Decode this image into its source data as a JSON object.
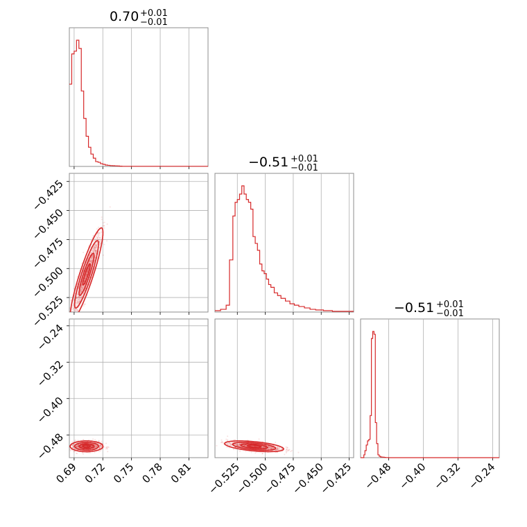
{
  "chart_data": [
    {
      "type": "histogram",
      "panel": "p0-0",
      "title": {
        "median": "0.70",
        "plus": "+0.01",
        "minus": "−0.01"
      },
      "xlim": [
        0.685,
        0.83
      ],
      "bins": [
        0.685,
        0.6875,
        0.69,
        0.6925,
        0.695,
        0.6975,
        0.7,
        0.7025,
        0.705,
        0.7075,
        0.71,
        0.7125,
        0.715,
        0.7175,
        0.72,
        0.7225,
        0.725,
        0.7275,
        0.73,
        0.7325,
        0.735,
        0.7375,
        0.74,
        0.83
      ],
      "heights": [
        0.6,
        0.82,
        0.84,
        0.92,
        0.86,
        0.55,
        0.35,
        0.22,
        0.14,
        0.09,
        0.06,
        0.035,
        0.03,
        0.02,
        0.015,
        0.01,
        0.008,
        0.006,
        0.005,
        0.004,
        0.003,
        0.002,
        0.001
      ],
      "color": "#d62728"
    },
    {
      "type": "scatter-contour",
      "panel": "p1-0",
      "xlim": [
        0.685,
        0.83
      ],
      "ylim": [
        -0.5375,
        -0.418
      ],
      "yticks": [
        "−0.425",
        "−0.450",
        "−0.475",
        "−0.500",
        "−0.525"
      ],
      "ytick_values": [
        -0.425,
        -0.45,
        -0.475,
        -0.5,
        -0.525
      ],
      "points_center": [
        0.703,
        -0.505
      ],
      "correlation": 0.9,
      "color": "#d62728"
    },
    {
      "type": "histogram",
      "panel": "p1-1",
      "title": {
        "median": "−0.51",
        "plus": "+0.01",
        "minus": "−0.01"
      },
      "xlim": [
        -0.545,
        -0.421
      ],
      "bins": [
        -0.545,
        -0.54,
        -0.535,
        -0.532,
        -0.529,
        -0.527,
        -0.525,
        -0.523,
        -0.521,
        -0.519,
        -0.517,
        -0.515,
        -0.513,
        -0.511,
        -0.509,
        -0.507,
        -0.505,
        -0.503,
        -0.501,
        -0.499,
        -0.497,
        -0.495,
        -0.492,
        -0.489,
        -0.486,
        -0.482,
        -0.478,
        -0.474,
        -0.47,
        -0.465,
        -0.46,
        -0.455,
        -0.448,
        -0.44,
        -0.421
      ],
      "heights": [
        0.01,
        0.02,
        0.05,
        0.38,
        0.7,
        0.8,
        0.82,
        0.86,
        0.92,
        0.86,
        0.82,
        0.8,
        0.75,
        0.55,
        0.5,
        0.45,
        0.35,
        0.3,
        0.28,
        0.24,
        0.2,
        0.18,
        0.14,
        0.12,
        0.1,
        0.08,
        0.06,
        0.05,
        0.04,
        0.03,
        0.02,
        0.015,
        0.01,
        0.005
      ],
      "color": "#d62728"
    },
    {
      "type": "scatter-contour",
      "panel": "p2-0",
      "xlim": [
        0.685,
        0.83
      ],
      "ylim": [
        -0.53,
        -0.225
      ],
      "xticks": [
        "0.69",
        "0.72",
        "0.75",
        "0.78",
        "0.81"
      ],
      "xtick_values": [
        0.69,
        0.72,
        0.75,
        0.78,
        0.81
      ],
      "yticks": [
        "−0.24",
        "−0.32",
        "−0.40",
        "−0.48"
      ],
      "ytick_values": [
        -0.24,
        -0.32,
        -0.4,
        -0.48
      ],
      "points_center": [
        0.703,
        -0.505
      ],
      "correlation": 0.0,
      "color": "#d62728"
    },
    {
      "type": "scatter-contour",
      "panel": "p2-1",
      "xlim": [
        -0.545,
        -0.421
      ],
      "ylim": [
        -0.53,
        -0.225
      ],
      "xticks": [
        "−0.525",
        "−0.500",
        "−0.475",
        "−0.450",
        "−0.425"
      ],
      "xtick_values": [
        -0.525,
        -0.5,
        -0.475,
        -0.45,
        -0.425
      ],
      "points_center": [
        -0.51,
        -0.505
      ],
      "correlation": -0.5,
      "color": "#d62728"
    },
    {
      "type": "histogram",
      "panel": "p2-2",
      "title": {
        "median": "−0.51",
        "plus": "+0.01",
        "minus": "−0.01"
      },
      "xlim": [
        -0.545,
        -0.225
      ],
      "xticks": [
        "−0.48",
        "−0.40",
        "−0.32",
        "−0.24"
      ],
      "xtick_values": [
        -0.48,
        -0.4,
        -0.32,
        -0.24
      ],
      "bins": [
        -0.545,
        -0.5375,
        -0.535,
        -0.532,
        -0.529,
        -0.526,
        -0.523,
        -0.52,
        -0.517,
        -0.514,
        -0.511,
        -0.508,
        -0.505,
        -0.502,
        -0.499,
        -0.496,
        -0.493,
        -0.49,
        -0.487,
        -0.484,
        -0.481,
        -0.478,
        -0.225
      ],
      "heights": [
        0.0,
        0.02,
        0.05,
        0.09,
        0.12,
        0.13,
        0.3,
        0.85,
        0.9,
        0.88,
        0.25,
        0.1,
        0.02,
        0.01,
        0.005,
        0.004,
        0.003,
        0.002,
        0.001,
        0.001,
        0.0,
        0.0
      ],
      "color": "#d62728"
    }
  ]
}
